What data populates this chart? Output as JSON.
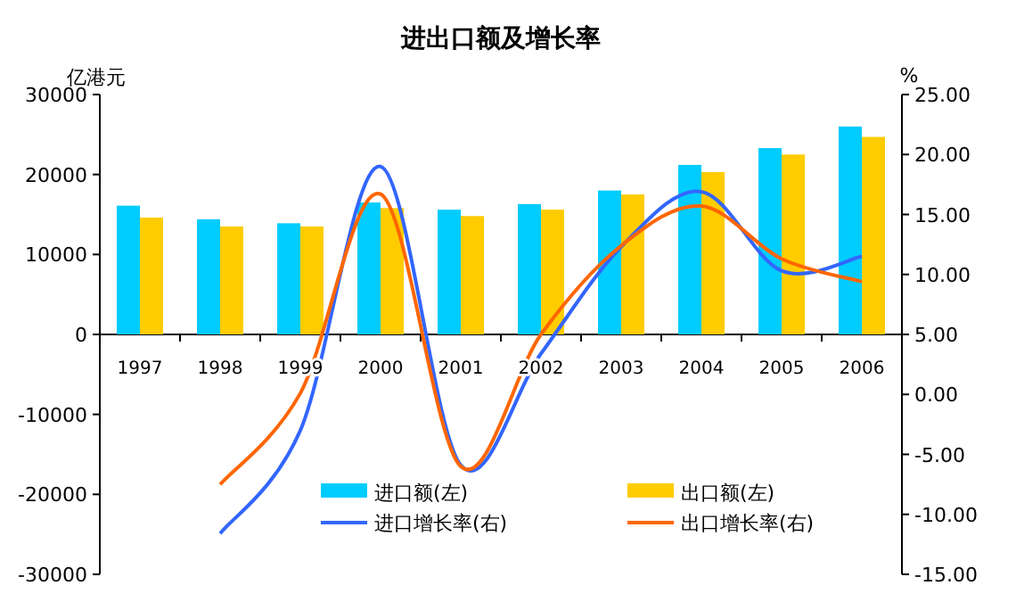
{
  "chart_data": {
    "type": "bar",
    "title": "进出口额及增长率",
    "ylabel": "亿港元",
    "y2label": "%",
    "categories": [
      "1997",
      "1998",
      "1999",
      "2000",
      "2001",
      "2002",
      "2003",
      "2004",
      "2005",
      "2006"
    ],
    "series": [
      {
        "name": "进口额(左)",
        "color": "#00ccff",
        "values": [
          16100,
          14400,
          13900,
          16500,
          15600,
          16300,
          18000,
          21200,
          23300,
          26000
        ]
      },
      {
        "name": "出口额(左)",
        "color": "#ffcc00",
        "values": [
          14600,
          13500,
          13500,
          15800,
          14800,
          15600,
          17500,
          20300,
          22500,
          24700
        ]
      },
      {
        "name": "进口增长率(右)",
        "type": "line",
        "axis": "y2",
        "color": "#3366ff",
        "values": [
          null,
          -11.6,
          -3.0,
          19.0,
          -5.9,
          3.4,
          12.3,
          16.9,
          10.3,
          11.5
        ]
      },
      {
        "name": "出口增长率(右)",
        "type": "line",
        "axis": "y2",
        "color": "#ff6600",
        "values": [
          null,
          -7.5,
          0.1,
          16.7,
          -6.0,
          5.0,
          12.4,
          15.7,
          11.3,
          9.4
        ]
      }
    ],
    "ylim": [
      -30000,
      30000
    ],
    "yticks": [
      -30000,
      -20000,
      -10000,
      0,
      10000,
      20000,
      30000
    ],
    "y2lim": [
      -15,
      25
    ],
    "y2ticks": [
      {
        "value": -15,
        "label": "-15.00"
      },
      {
        "value": -10,
        "label": "-10.00"
      },
      {
        "value": -5,
        "label": "-5.00"
      },
      {
        "value": 0,
        "label": "0.00"
      },
      {
        "value": 5,
        "label": "5.00"
      },
      {
        "value": 10,
        "label": "10.00"
      },
      {
        "value": 15,
        "label": "15.00"
      },
      {
        "value": 20,
        "label": "20.00"
      },
      {
        "value": 25,
        "label": "25.00"
      }
    ],
    "legend": "bottom",
    "grid": false,
    "line_style": "solid",
    "marker": "none"
  }
}
